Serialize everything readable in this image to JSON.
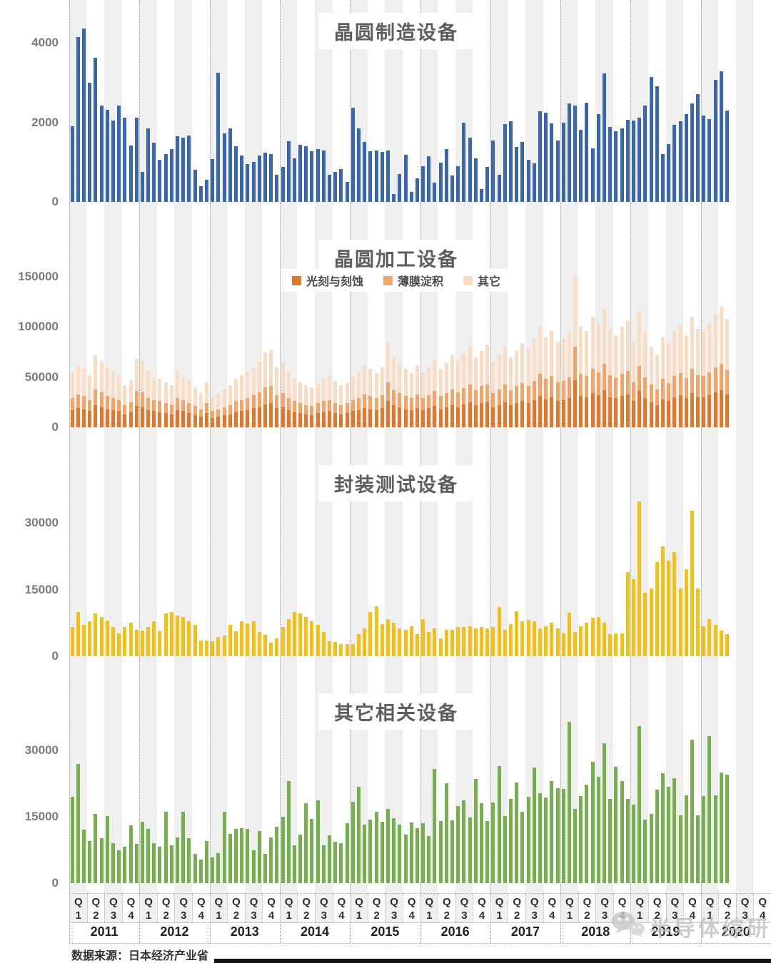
{
  "footer": {
    "source": "数据来源：日本经济产业省"
  },
  "watermark": {
    "text": "半导体综研",
    "icon": "wechat-icon",
    "color": "#c0c0c0"
  },
  "x_axis": {
    "quarter_prefix": "Q",
    "quarter_numbers": [
      "1",
      "2",
      "3",
      "4"
    ],
    "years": [
      "2011",
      "2012",
      "2013",
      "2014",
      "2015",
      "2016",
      "2017",
      "2018",
      "2019",
      "2020"
    ]
  },
  "chart_data": [
    {
      "type": "bar",
      "title": "晶圆制造设备",
      "color": "#3a66ae",
      "ylim": [
        0,
        4600
      ],
      "yticks": [
        {
          "label": "0",
          "value": 0
        },
        {
          "label": "2000",
          "value": 2000
        },
        {
          "label": "4000",
          "value": 4000
        }
      ],
      "x_unit": "month (2011-01 to 2020-05, quarterly/year axis labels)",
      "values": [
        1900,
        4150,
        4350,
        2990,
        3620,
        2420,
        2320,
        2050,
        2430,
        2120,
        1420,
        2110,
        760,
        1850,
        1480,
        1050,
        1200,
        1320,
        1650,
        1620,
        1660,
        810,
        390,
        560,
        1080,
        3250,
        1720,
        1850,
        1400,
        1170,
        950,
        1000,
        1170,
        1230,
        1210,
        680,
        880,
        1530,
        1100,
        1440,
        1400,
        1280,
        1320,
        1300,
        680,
        760,
        830,
        500,
        2360,
        1850,
        1500,
        1280,
        1300,
        1250,
        1300,
        200,
        700,
        1180,
        250,
        600,
        900,
        1140,
        480,
        990,
        1320,
        660,
        900,
        2000,
        1620,
        1100,
        320,
        880,
        1540,
        690,
        1950,
        2020,
        1380,
        1500,
        1050,
        960,
        2280,
        2250,
        1980,
        1550,
        2000,
        2480,
        2420,
        1820,
        2500,
        1350,
        2200,
        3230,
        1880,
        1770,
        1850,
        2060,
        2050,
        2120,
        2430,
        3140,
        2900,
        1200,
        1450,
        1940,
        2030,
        2200,
        2480,
        2700,
        2170,
        2080,
        3070,
        3280,
        2300
      ]
    },
    {
      "type": "bar",
      "stacked": true,
      "title": "晶圆加工设备",
      "ylim": [
        0,
        160000
      ],
      "yticks": [
        {
          "label": "0",
          "value": 0
        },
        {
          "label": "50000",
          "value": 50000
        },
        {
          "label": "100000",
          "value": 100000
        },
        {
          "label": "150000",
          "value": 150000
        }
      ],
      "legend_position": "top-center",
      "series": [
        {
          "name": "光刻与刻蚀",
          "color": "#e2762b",
          "values": [
            17000,
            19000,
            18000,
            16000,
            22000,
            20000,
            18000,
            17000,
            16000,
            13000,
            15000,
            21000,
            20000,
            17000,
            16000,
            15000,
            14000,
            13000,
            17000,
            16000,
            14000,
            12000,
            11000,
            14000,
            9000,
            11000,
            12000,
            13000,
            15000,
            16000,
            17000,
            19000,
            20000,
            23000,
            24000,
            19000,
            20000,
            17000,
            15000,
            14000,
            13000,
            12000,
            14000,
            15000,
            16000,
            14000,
            13000,
            14000,
            16000,
            17000,
            19000,
            18000,
            17000,
            19000,
            26000,
            22000,
            20000,
            18000,
            17000,
            19000,
            17000,
            19000,
            21000,
            18000,
            20000,
            22000,
            20000,
            23000,
            25000,
            22000,
            24000,
            25000,
            20000,
            22000,
            25000,
            22000,
            24000,
            26000,
            24000,
            27000,
            31000,
            28000,
            30000,
            26000,
            27000,
            29000,
            47000,
            31000,
            30000,
            34000,
            32000,
            37000,
            30000,
            29000,
            31000,
            33000,
            26000,
            36000,
            29000,
            25000,
            22000,
            28000,
            26000,
            30000,
            32000,
            29000,
            34000,
            30000,
            30000,
            32000,
            35000,
            37000,
            33000
          ]
        },
        {
          "name": "薄膜淀积",
          "color": "#f2a567",
          "values": [
            12000,
            14000,
            13000,
            11000,
            16000,
            15000,
            13000,
            12000,
            11000,
            9000,
            10000,
            15000,
            15000,
            12000,
            11000,
            11000,
            10000,
            9000,
            12000,
            11000,
            10000,
            9000,
            7000,
            10000,
            7000,
            7000,
            8000,
            9000,
            11000,
            11000,
            12000,
            13000,
            15000,
            17000,
            17000,
            13000,
            14000,
            12000,
            11000,
            10000,
            9000,
            9000,
            10000,
            11000,
            11000,
            10000,
            9000,
            10000,
            11000,
            12000,
            14000,
            13000,
            12000,
            13000,
            19000,
            15000,
            14000,
            13000,
            12000,
            14000,
            12000,
            13000,
            15000,
            13000,
            14000,
            16000,
            15000,
            16000,
            18000,
            15000,
            17000,
            18000,
            14000,
            16000,
            18000,
            15000,
            17000,
            18000,
            17000,
            19000,
            22000,
            20000,
            21000,
            19000,
            19000,
            21000,
            33000,
            22000,
            21000,
            24000,
            23000,
            26000,
            22000,
            20000,
            22000,
            23000,
            19000,
            25000,
            21000,
            18000,
            16000,
            20000,
            18000,
            21000,
            22000,
            20000,
            24000,
            22000,
            21000,
            23000,
            25000,
            26000,
            24000
          ]
        },
        {
          "name": "其它",
          "color": "#f8dcc3",
          "values": [
            26000,
            29000,
            27000,
            25000,
            34000,
            31000,
            27000,
            27000,
            24000,
            20000,
            22000,
            32000,
            31000,
            27000,
            23000,
            22000,
            21000,
            20000,
            27000,
            23000,
            22000,
            19000,
            16000,
            21000,
            14000,
            16000,
            18000,
            20000,
            22000,
            25000,
            26000,
            28000,
            31000,
            35000,
            36000,
            28000,
            31000,
            26000,
            22000,
            21000,
            20000,
            19000,
            20000,
            22000,
            25000,
            22000,
            20000,
            20000,
            23000,
            26000,
            29000,
            27000,
            25000,
            28000,
            40000,
            33000,
            30000,
            27000,
            25000,
            29000,
            26000,
            28000,
            32000,
            27000,
            30000,
            34000,
            31000,
            35000,
            37000,
            33000,
            35000,
            39000,
            31000,
            34000,
            37000,
            33000,
            35000,
            40000,
            37000,
            42000,
            47000,
            42000,
            45000,
            40000,
            42000,
            45000,
            70000,
            47000,
            45000,
            52000,
            49000,
            55000,
            46000,
            43000,
            47000,
            50000,
            40000,
            54000,
            45000,
            37000,
            34000,
            42000,
            40000,
            45000,
            48000,
            43000,
            52000,
            46000,
            45000,
            49000,
            52000,
            57000,
            51000
          ]
        }
      ]
    },
    {
      "type": "bar",
      "title": "封装测试设备",
      "color": "#f3c013",
      "ylim": [
        0,
        36500
      ],
      "yticks": [
        {
          "label": "0",
          "value": 0
        },
        {
          "label": "15000",
          "value": 15000
        },
        {
          "label": "30000",
          "value": 30000
        }
      ],
      "values": [
        6600,
        9900,
        7000,
        7900,
        9700,
        8800,
        8100,
        6600,
        5200,
        6600,
        7600,
        5900,
        5800,
        6500,
        7900,
        5600,
        9700,
        9900,
        9100,
        8800,
        7900,
        7000,
        3500,
        3600,
        3300,
        4300,
        4600,
        7000,
        5600,
        7800,
        7400,
        7800,
        5500,
        4800,
        3100,
        4000,
        6500,
        8400,
        9900,
        9700,
        8900,
        7800,
        7000,
        5500,
        3300,
        3200,
        2700,
        2800,
        2700,
        4900,
        6200,
        9900,
        11300,
        7300,
        8300,
        7600,
        6200,
        6000,
        6800,
        4900,
        8300,
        5400,
        6300,
        4000,
        6000,
        6000,
        6500,
        6600,
        6800,
        6300,
        6500,
        6200,
        6500,
        11100,
        6000,
        7300,
        10100,
        7800,
        8200,
        7900,
        6300,
        6700,
        7500,
        6300,
        5200,
        9800,
        5400,
        6800,
        7600,
        8600,
        8900,
        7500,
        4900,
        5200,
        5100,
        18900,
        17400,
        34800,
        14200,
        15300,
        21200,
        24700,
        21500,
        23400,
        15300,
        19600,
        32800,
        15200,
        6800,
        8400,
        7000,
        5800,
        4900
      ]
    },
    {
      "type": "bar",
      "title": "其它相关设备",
      "color": "#76af4e",
      "ylim": [
        0,
        37500
      ],
      "yticks": [
        {
          "label": "0",
          "value": 0
        },
        {
          "label": "15000",
          "value": 15000
        },
        {
          "label": "30000",
          "value": 30000
        }
      ],
      "values": [
        19500,
        27000,
        12100,
        9500,
        15700,
        10100,
        15100,
        9000,
        7400,
        8200,
        13000,
        8900,
        13800,
        12200,
        9000,
        8200,
        16200,
        8500,
        10400,
        16200,
        10100,
        6600,
        5300,
        9500,
        5800,
        6800,
        16200,
        11100,
        12200,
        12500,
        12200,
        7400,
        11700,
        6600,
        10300,
        12700,
        15000,
        23100,
        8500,
        11000,
        18000,
        14500,
        18700,
        8500,
        10800,
        9300,
        9000,
        13500,
        18400,
        21700,
        13200,
        14300,
        16100,
        13800,
        16800,
        14700,
        13200,
        10900,
        13700,
        12400,
        13500,
        10600,
        25800,
        14000,
        22600,
        14200,
        17500,
        18700,
        14800,
        23500,
        18100,
        14000,
        18300,
        26500,
        15100,
        19100,
        22700,
        16100,
        19500,
        26200,
        20300,
        19400,
        23100,
        21500,
        21300,
        36400,
        16700,
        19600,
        22300,
        27500,
        24000,
        31600,
        19000,
        26300,
        23000,
        19000,
        17700,
        35500,
        14400,
        15600,
        21200,
        24800,
        21800,
        23700,
        15400,
        19900,
        32500,
        15400,
        19600,
        33200,
        19900,
        25000,
        24500
      ]
    }
  ]
}
